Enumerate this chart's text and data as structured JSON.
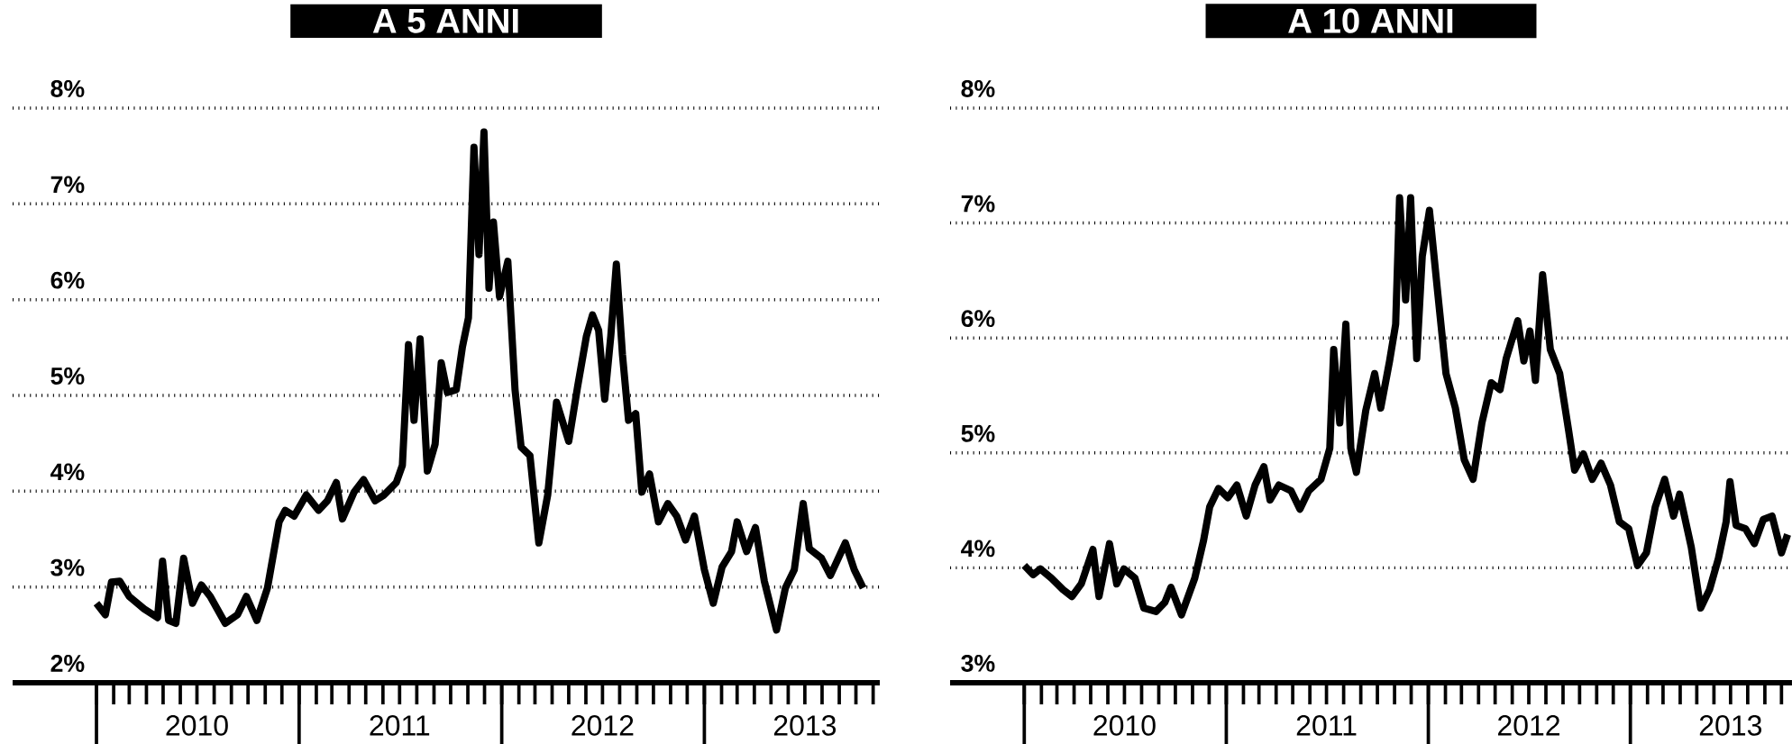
{
  "chart_data": [
    {
      "type": "line",
      "title": "A 5 ANNI",
      "grid": "y",
      "marker": "none",
      "line_style": "solid",
      "xlim": [
        "2009-08-03",
        "2013-11-13"
      ],
      "ylim": [
        2,
        8
      ],
      "yticks": [
        {
          "value": 2,
          "label": "2%"
        },
        {
          "value": 3,
          "label": "3%"
        },
        {
          "value": 4,
          "label": "4%"
        },
        {
          "value": 5,
          "label": "5%"
        },
        {
          "value": 6,
          "label": "6%"
        },
        {
          "value": 7,
          "label": "7%"
        },
        {
          "value": 8,
          "label": "8%"
        }
      ],
      "xticks": [
        {
          "value": "2010-01-01",
          "label": null
        },
        {
          "value": "2010-02-01",
          "label": null
        },
        {
          "value": "2010-03-01",
          "label": null
        },
        {
          "value": "2010-04-01",
          "label": null
        },
        {
          "value": "2010-05-01",
          "label": null
        },
        {
          "value": "2010-06-01",
          "label": null
        },
        {
          "value": "2010-07-01",
          "label": "2010"
        },
        {
          "value": "2010-08-01",
          "label": null
        },
        {
          "value": "2010-09-01",
          "label": null
        },
        {
          "value": "2010-10-01",
          "label": null
        },
        {
          "value": "2010-11-01",
          "label": null
        },
        {
          "value": "2010-12-01",
          "label": null
        },
        {
          "value": "2011-01-01",
          "label": null
        },
        {
          "value": "2011-02-01",
          "label": null
        },
        {
          "value": "2011-03-01",
          "label": null
        },
        {
          "value": "2011-04-01",
          "label": null
        },
        {
          "value": "2011-05-01",
          "label": null
        },
        {
          "value": "2011-06-01",
          "label": null
        },
        {
          "value": "2011-07-01",
          "label": "2011"
        },
        {
          "value": "2011-08-01",
          "label": null
        },
        {
          "value": "2011-09-01",
          "label": null
        },
        {
          "value": "2011-10-01",
          "label": null
        },
        {
          "value": "2011-11-01",
          "label": null
        },
        {
          "value": "2011-12-01",
          "label": null
        },
        {
          "value": "2012-01-01",
          "label": null
        },
        {
          "value": "2012-02-01",
          "label": null
        },
        {
          "value": "2012-03-01",
          "label": null
        },
        {
          "value": "2012-04-01",
          "label": null
        },
        {
          "value": "2012-05-01",
          "label": null
        },
        {
          "value": "2012-06-01",
          "label": null
        },
        {
          "value": "2012-07-01",
          "label": "2012"
        },
        {
          "value": "2012-08-01",
          "label": null
        },
        {
          "value": "2012-09-01",
          "label": null
        },
        {
          "value": "2012-10-01",
          "label": null
        },
        {
          "value": "2012-11-01",
          "label": null
        },
        {
          "value": "2012-12-01",
          "label": null
        },
        {
          "value": "2013-01-01",
          "label": null
        },
        {
          "value": "2013-02-01",
          "label": null
        },
        {
          "value": "2013-03-01",
          "label": null
        },
        {
          "value": "2013-04-01",
          "label": null
        },
        {
          "value": "2013-05-01",
          "label": null
        },
        {
          "value": "2013-06-01",
          "label": null
        },
        {
          "value": "2013-07-01",
          "label": "2013"
        },
        {
          "value": "2013-08-01",
          "label": null
        },
        {
          "value": "2013-09-01",
          "label": null
        },
        {
          "value": "2013-10-01",
          "label": null
        },
        {
          "value": "2013-11-01",
          "label": null
        }
      ],
      "x": [
        "2010-01-01",
        "2010-01-17",
        "2010-01-28",
        "2010-02-12",
        "2010-03-01",
        "2010-03-28",
        "2010-04-21",
        "2010-04-30",
        "2010-05-11",
        "2010-05-24",
        "2010-06-07",
        "2010-06-23",
        "2010-07-09",
        "2010-07-25",
        "2010-08-21",
        "2010-09-12",
        "2010-09-28",
        "2010-10-17",
        "2010-11-05",
        "2010-11-26",
        "2010-12-07",
        "2010-12-23",
        "2011-01-14",
        "2011-02-05",
        "2011-02-21",
        "2011-03-09",
        "2011-03-20",
        "2011-04-10",
        "2011-04-27",
        "2011-05-18",
        "2011-06-03",
        "2011-06-25",
        "2011-07-06",
        "2011-07-17",
        "2011-07-27",
        "2011-08-07",
        "2011-08-20",
        "2011-09-03",
        "2011-09-14",
        "2011-09-25",
        "2011-10-11",
        "2011-10-22",
        "2011-11-02",
        "2011-11-12",
        "2011-11-21",
        "2011-11-30",
        "2011-12-09",
        "2011-12-17",
        "2011-12-28",
        "2012-01-12",
        "2012-01-25",
        "2012-02-05",
        "2012-02-21",
        "2012-03-08",
        "2012-03-24",
        "2012-04-09",
        "2012-05-01",
        "2012-05-17",
        "2012-06-02",
        "2012-06-13",
        "2012-06-24",
        "2012-07-05",
        "2012-07-16",
        "2012-07-26",
        "2012-08-06",
        "2012-08-17",
        "2012-08-30",
        "2012-09-10",
        "2012-09-24",
        "2012-10-10",
        "2012-10-27",
        "2012-11-12",
        "2012-11-28",
        "2012-12-14",
        "2013-01-01",
        "2013-01-17",
        "2013-02-02",
        "2013-02-19",
        "2013-03-01",
        "2013-03-18",
        "2013-04-03",
        "2013-04-19",
        "2013-05-11",
        "2013-05-27",
        "2013-06-12",
        "2013-06-28",
        "2013-07-09",
        "2013-07-31",
        "2013-08-16",
        "2013-09-12",
        "2013-09-28",
        "2013-10-14"
      ],
      "series": [
        {
          "color": "#000000",
          "values": [
            2.83,
            2.71,
            3.05,
            3.06,
            2.9,
            2.77,
            2.68,
            3.27,
            2.65,
            2.62,
            3.3,
            2.83,
            3.02,
            2.9,
            2.62,
            2.71,
            2.9,
            2.65,
            2.99,
            3.68,
            3.8,
            3.74,
            3.96,
            3.8,
            3.9,
            4.09,
            3.71,
            3.99,
            4.12,
            3.9,
            3.96,
            4.09,
            4.27,
            5.53,
            4.74,
            5.59,
            4.21,
            4.49,
            5.34,
            5.03,
            5.06,
            5.5,
            5.81,
            7.59,
            6.47,
            7.75,
            6.12,
            6.81,
            6.03,
            6.4,
            5.06,
            4.46,
            4.37,
            3.46,
            3.96,
            4.93,
            4.52,
            5.09,
            5.62,
            5.84,
            5.68,
            4.96,
            5.62,
            6.37,
            5.43,
            4.74,
            4.81,
            3.99,
            4.18,
            3.68,
            3.87,
            3.74,
            3.49,
            3.74,
            3.18,
            2.83,
            3.21,
            3.37,
            3.68,
            3.37,
            3.62,
            3.06,
            2.55,
            2.99,
            3.18,
            3.87,
            3.4,
            3.3,
            3.12,
            3.46,
            3.18,
            2.99
          ]
        }
      ]
    },
    {
      "type": "line",
      "title": "A 10 ANNI",
      "grid": "y",
      "marker": "none",
      "line_style": "solid",
      "xlim": [
        "2009-08-20",
        "2013-10-20"
      ],
      "ylim": [
        3,
        8
      ],
      "yticks": [
        {
          "value": 3,
          "label": "3%"
        },
        {
          "value": 4,
          "label": "4%"
        },
        {
          "value": 5,
          "label": "5%"
        },
        {
          "value": 6,
          "label": "6%"
        },
        {
          "value": 7,
          "label": "7%"
        },
        {
          "value": 8,
          "label": "8%"
        }
      ],
      "xticks": [
        {
          "value": "2010-01-01",
          "label": null
        },
        {
          "value": "2010-02-01",
          "label": null
        },
        {
          "value": "2010-03-01",
          "label": null
        },
        {
          "value": "2010-04-01",
          "label": null
        },
        {
          "value": "2010-05-01",
          "label": null
        },
        {
          "value": "2010-06-01",
          "label": null
        },
        {
          "value": "2010-07-01",
          "label": "2010"
        },
        {
          "value": "2010-08-01",
          "label": null
        },
        {
          "value": "2010-09-01",
          "label": null
        },
        {
          "value": "2010-10-01",
          "label": null
        },
        {
          "value": "2010-11-01",
          "label": null
        },
        {
          "value": "2010-12-01",
          "label": null
        },
        {
          "value": "2011-01-01",
          "label": null
        },
        {
          "value": "2011-02-01",
          "label": null
        },
        {
          "value": "2011-03-01",
          "label": null
        },
        {
          "value": "2011-04-01",
          "label": null
        },
        {
          "value": "2011-05-01",
          "label": null
        },
        {
          "value": "2011-06-01",
          "label": null
        },
        {
          "value": "2011-07-01",
          "label": "2011"
        },
        {
          "value": "2011-08-01",
          "label": null
        },
        {
          "value": "2011-09-01",
          "label": null
        },
        {
          "value": "2011-10-01",
          "label": null
        },
        {
          "value": "2011-11-01",
          "label": null
        },
        {
          "value": "2011-12-01",
          "label": null
        },
        {
          "value": "2012-01-01",
          "label": null
        },
        {
          "value": "2012-02-01",
          "label": null
        },
        {
          "value": "2012-03-01",
          "label": null
        },
        {
          "value": "2012-04-01",
          "label": null
        },
        {
          "value": "2012-05-01",
          "label": null
        },
        {
          "value": "2012-06-01",
          "label": null
        },
        {
          "value": "2012-07-01",
          "label": "2012"
        },
        {
          "value": "2012-08-01",
          "label": null
        },
        {
          "value": "2012-09-01",
          "label": null
        },
        {
          "value": "2012-10-01",
          "label": null
        },
        {
          "value": "2012-11-01",
          "label": null
        },
        {
          "value": "2012-12-01",
          "label": null
        },
        {
          "value": "2013-01-01",
          "label": null
        },
        {
          "value": "2013-02-01",
          "label": null
        },
        {
          "value": "2013-03-01",
          "label": null
        },
        {
          "value": "2013-04-01",
          "label": null
        },
        {
          "value": "2013-05-01",
          "label": null
        },
        {
          "value": "2013-06-01",
          "label": null
        },
        {
          "value": "2013-07-01",
          "label": "2013"
        },
        {
          "value": "2013-08-01",
          "label": null
        },
        {
          "value": "2013-09-01",
          "label": null
        },
        {
          "value": "2013-10-01",
          "label": null
        }
      ],
      "x": [
        "2010-01-01",
        "2010-01-17",
        "2010-01-30",
        "2010-02-19",
        "2010-03-12",
        "2010-03-28",
        "2010-04-14",
        "2010-05-05",
        "2010-05-16",
        "2010-06-04",
        "2010-06-17",
        "2010-06-30",
        "2010-07-20",
        "2010-08-05",
        "2010-08-27",
        "2010-09-12",
        "2010-09-23",
        "2010-10-12",
        "2010-11-05",
        "2010-11-21",
        "2010-12-02",
        "2010-12-18",
        "2011-01-04",
        "2011-01-20",
        "2011-02-06",
        "2011-02-22",
        "2011-03-10",
        "2011-03-21",
        "2011-04-06",
        "2011-04-28",
        "2011-05-14",
        "2011-05-30",
        "2011-06-21",
        "2011-07-07",
        "2011-07-14",
        "2011-07-25",
        "2011-08-05",
        "2011-08-14",
        "2011-08-24",
        "2011-09-10",
        "2011-09-26",
        "2011-10-07",
        "2011-10-23",
        "2011-11-03",
        "2011-11-10",
        "2011-11-21",
        "2011-11-30",
        "2011-12-11",
        "2011-12-21",
        "2012-01-03",
        "2012-01-17",
        "2012-02-02",
        "2012-02-19",
        "2012-03-06",
        "2012-03-22",
        "2012-04-07",
        "2012-04-24",
        "2012-05-10",
        "2012-05-21",
        "2012-06-11",
        "2012-06-22",
        "2012-07-03",
        "2012-07-13",
        "2012-07-26",
        "2012-08-09",
        "2012-08-26",
        "2012-09-11",
        "2012-09-22",
        "2012-10-08",
        "2012-10-24",
        "2012-11-09",
        "2012-11-26",
        "2012-12-12",
        "2012-12-29",
        "2013-01-14",
        "2013-01-30",
        "2013-02-15",
        "2013-03-04",
        "2013-03-20",
        "2013-03-31",
        "2013-04-21",
        "2013-05-08",
        "2013-05-24",
        "2013-06-09",
        "2013-06-23",
        "2013-06-30",
        "2013-07-11",
        "2013-07-28",
        "2013-08-13",
        "2013-08-29",
        "2013-09-14",
        "2013-10-01",
        "2013-10-12"
      ],
      "series": [
        {
          "color": "#000000",
          "values": [
            4.02,
            3.94,
            3.99,
            3.91,
            3.81,
            3.75,
            3.86,
            4.16,
            3.75,
            4.21,
            3.86,
            3.99,
            3.91,
            3.65,
            3.62,
            3.7,
            3.83,
            3.59,
            3.91,
            4.24,
            4.53,
            4.69,
            4.61,
            4.72,
            4.45,
            4.72,
            4.88,
            4.59,
            4.72,
            4.67,
            4.51,
            4.67,
            4.77,
            5.04,
            5.9,
            5.26,
            6.12,
            5.04,
            4.83,
            5.37,
            5.69,
            5.39,
            5.8,
            6.12,
            7.22,
            6.33,
            7.22,
            5.82,
            6.71,
            7.11,
            6.44,
            5.69,
            5.39,
            4.94,
            4.77,
            5.26,
            5.61,
            5.55,
            5.82,
            6.15,
            5.8,
            6.06,
            5.63,
            6.55,
            5.9,
            5.69,
            5.2,
            4.85,
            4.99,
            4.77,
            4.91,
            4.72,
            4.4,
            4.34,
            4.02,
            4.13,
            4.53,
            4.77,
            4.45,
            4.64,
            4.18,
            3.65,
            3.81,
            4.08,
            4.4,
            4.75,
            4.37,
            4.34,
            4.21,
            4.42,
            4.45,
            4.13,
            4.29
          ]
        }
      ]
    }
  ]
}
